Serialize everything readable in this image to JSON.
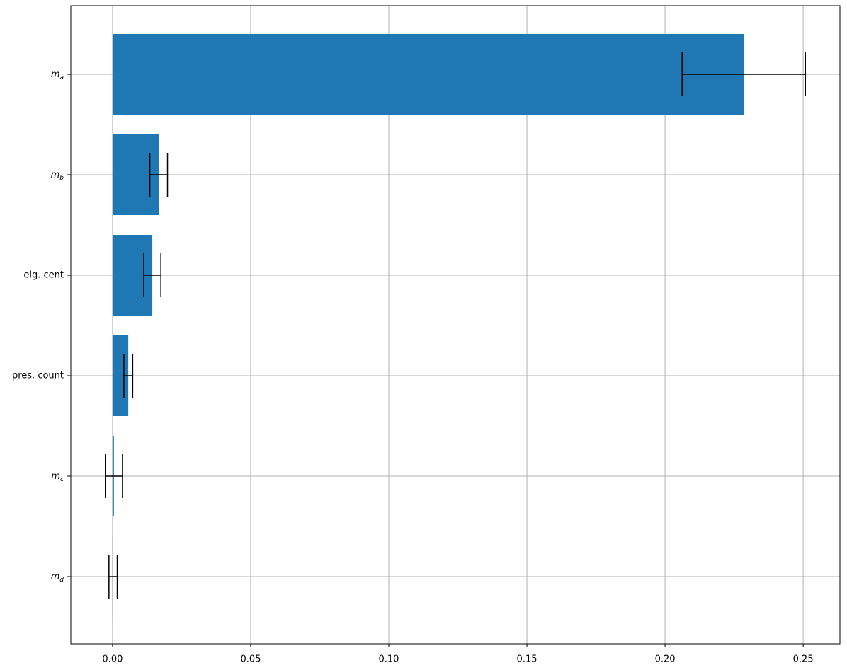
{
  "chart_data": {
    "type": "barh",
    "categories": [
      "m_a",
      "m_b",
      "eig. cent",
      "pres. count",
      "m_c",
      "m_d"
    ],
    "values": [
      0.2285,
      0.0167,
      0.0144,
      0.0057,
      0.0005,
      0.0002
    ],
    "errors": [
      0.0223,
      0.0032,
      0.0031,
      0.0016,
      0.0031,
      0.0015
    ],
    "color": "#1f77b4",
    "error_color": "#000000",
    "xlim": [
      -0.0151,
      0.2633
    ],
    "xticks": [
      {
        "value": 0,
        "label": "0.00"
      },
      0.05,
      {
        "value": 0.1,
        "label": "0.10"
      },
      0.15,
      {
        "value": 0.2,
        "label": "0.20"
      },
      0.25
    ],
    "grid": true
  }
}
